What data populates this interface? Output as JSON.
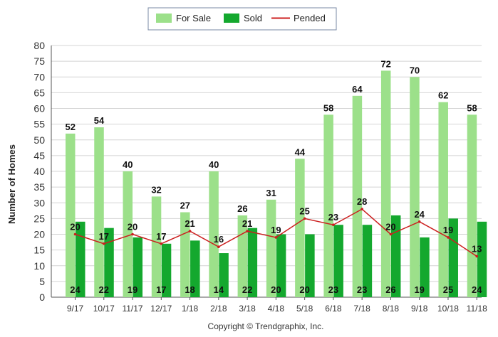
{
  "chart_data": {
    "type": "bar",
    "title": "",
    "xlabel": "",
    "ylabel": "Number of Homes",
    "ylim": [
      0,
      80
    ],
    "ytick_step": 5,
    "grid": true,
    "legend_position": "top-center",
    "categories": [
      "9/17",
      "10/17",
      "11/17",
      "12/17",
      "1/18",
      "2/18",
      "3/18",
      "4/18",
      "5/18",
      "6/18",
      "7/18",
      "8/18",
      "9/18",
      "10/18",
      "11/18"
    ],
    "series": [
      {
        "name": "For Sale",
        "kind": "bar",
        "color": "#9ce08a",
        "values": [
          52,
          54,
          40,
          32,
          27,
          40,
          26,
          31,
          44,
          58,
          64,
          72,
          70,
          62,
          58
        ]
      },
      {
        "name": "Sold",
        "kind": "bar",
        "color": "#14a82e",
        "values": [
          24,
          22,
          19,
          17,
          18,
          14,
          22,
          20,
          20,
          23,
          23,
          26,
          19,
          25,
          24
        ]
      },
      {
        "name": "Pended",
        "kind": "line",
        "color": "#cc1f1f",
        "values": [
          20,
          17,
          20,
          17,
          21,
          16,
          21,
          19,
          25,
          23,
          28,
          20,
          24,
          19,
          13
        ]
      }
    ],
    "footer": "Copyright © Trendgraphix, Inc."
  }
}
